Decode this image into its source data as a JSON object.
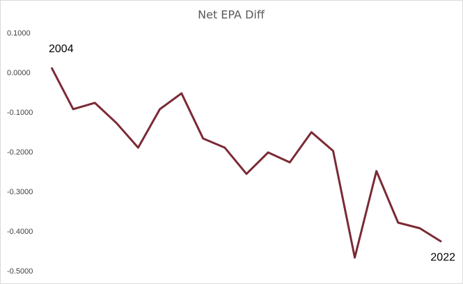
{
  "chart_data": {
    "type": "line",
    "title": "Net EPA Diff",
    "annotations": [
      "2004",
      "2022"
    ],
    "series": [
      {
        "name": null,
        "color": "#7b2a35",
        "values": [
          0.014,
          -0.091,
          -0.075,
          -0.126,
          -0.188,
          -0.091,
          -0.051,
          -0.165,
          -0.188,
          -0.254,
          -0.2,
          -0.225,
          -0.149,
          -0.196,
          -0.465,
          -0.247,
          -0.377,
          -0.391,
          -0.425
        ]
      }
    ],
    "ylim": [
      -0.5,
      0.1
    ],
    "yticks": [
      {
        "value": 0.1,
        "label": "0.1000"
      },
      {
        "value": 0,
        "label": "0.0000"
      },
      {
        "value": -0.1,
        "label": "-0.1000"
      },
      {
        "value": -0.2,
        "label": "-0.2000"
      },
      {
        "value": -0.3,
        "label": "-0.3000"
      },
      {
        "value": -0.4,
        "label": "-0.4000"
      },
      {
        "value": -0.5,
        "label": "-0.5000"
      }
    ],
    "grid": false
  }
}
